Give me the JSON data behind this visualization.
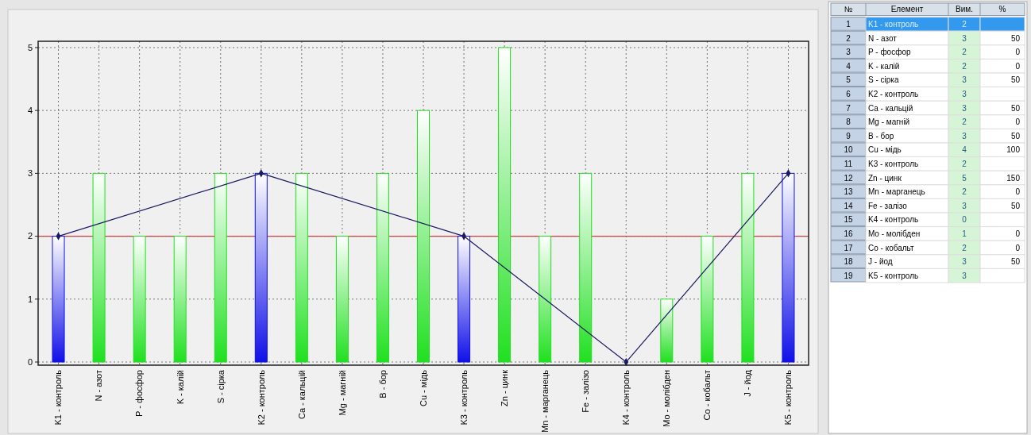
{
  "chart_data": [
    {
      "type": "bar",
      "categories": [
        "K1 - контроль",
        "N - азот",
        "P - фосфор",
        "K - калій",
        "S - сірка",
        "K2 - контроль",
        "Ca - кальцій",
        "Mg - магній",
        "B - бор",
        "Cu - мідь",
        "K3 - контроль",
        "Zn - цинк",
        "Mn - марганець",
        "Fe - залізо",
        "K4 - контроль",
        "Mo - молібден",
        "Co - кобальт",
        "J - йод",
        "K5 - контроль"
      ],
      "series": [
        {
          "values": [
            2,
            3,
            2,
            2,
            3,
            3,
            3,
            2,
            3,
            4,
            2,
            5,
            2,
            3,
            0,
            1,
            2,
            3,
            3
          ],
          "colors": [
            "#1010e8",
            "#20e020",
            "#20e020",
            "#20e020",
            "#20e020",
            "#1010e8",
            "#20e020",
            "#20e020",
            "#20e020",
            "#20e020",
            "#1010e8",
            "#20e020",
            "#20e020",
            "#20e020",
            "#1010e8",
            "#20e020",
            "#20e020",
            "#20e020",
            "#1010e8"
          ]
        },
        {
          "type": "line",
          "color": "#1a1a5e",
          "x": [
            "K1 - контроль",
            "K2 - контроль",
            "K3 - контроль",
            "K4 - контроль",
            "K5 - контроль"
          ],
          "values": [
            2,
            3,
            2,
            0,
            3
          ]
        }
      ],
      "ylim": [
        -0.05,
        5.1
      ],
      "yticks": [
        0,
        1,
        2,
        3,
        4,
        5
      ],
      "grid": true,
      "marker": "diamond",
      "ref_lines": [
        {
          "axis": "y",
          "value": 2,
          "color": "#d04040"
        }
      ]
    },
    {
      "type": "other",
      "annotations": [
        "Елемент"
      ],
      "categories": [
        "K1 - контроль",
        "N - азот",
        "P - фосфор",
        "K - калій",
        "S - сірка",
        "K2 - контроль",
        "Ca - кальцій",
        "Mg - магній",
        "B - бор",
        "Cu - мідь",
        "K3 - контроль",
        "Zn - цинк",
        "Mn - марганець",
        "Fe - залізо",
        "K4 - контроль",
        "Mo - молібден",
        "Co - кобальт",
        "J - йод",
        "K5 - контроль"
      ],
      "series": [
        {
          "name": "№",
          "colors": [
            "#c5d3e6",
            "#c5d3e6",
            "#c5d3e6",
            "#c5d3e6",
            "#c5d3e6",
            "#c5d3e6",
            "#c5d3e6",
            "#c5d3e6",
            "#c5d3e6",
            "#c5d3e6",
            "#c5d3e6",
            "#c5d3e6",
            "#c5d3e6",
            "#c5d3e6",
            "#c5d3e6",
            "#c5d3e6",
            "#c5d3e6",
            "#c5d3e6",
            "#c5d3e6"
          ],
          "values": [
            1,
            2,
            3,
            4,
            5,
            6,
            7,
            8,
            9,
            10,
            11,
            12,
            13,
            14,
            15,
            16,
            17,
            18,
            19
          ]
        },
        {
          "name": "Вим.",
          "colors": [
            "#3399ee",
            "#d6f5d6",
            "#d6f5d6",
            "#d6f5d6",
            "#d6f5d6",
            "#d6f5d6",
            "#d6f5d6",
            "#d6f5d6",
            "#d6f5d6",
            "#d6f5d6",
            "#d6f5d6",
            "#d6f5d6",
            "#d6f5d6",
            "#d6f5d6",
            "#d6f5d6",
            "#d6f5d6",
            "#d6f5d6",
            "#d6f5d6",
            "#d6f5d6"
          ],
          "values": [
            2,
            3,
            2,
            2,
            3,
            3,
            3,
            2,
            3,
            4,
            2,
            5,
            2,
            3,
            0,
            1,
            2,
            3,
            3
          ]
        },
        {
          "name": "%",
          "colors": [
            "#3399ee",
            "#ffffff",
            "#ffffff",
            "#ffffff",
            "#ffffff",
            "#ffffff",
            "#ffffff",
            "#ffffff",
            "#ffffff",
            "#ffffff",
            "#ffffff",
            "#ffffff",
            "#ffffff",
            "#ffffff",
            "#ffffff",
            "#ffffff",
            "#ffffff",
            "#ffffff",
            "#ffffff"
          ],
          "values": [
            null,
            50,
            0,
            0,
            50,
            null,
            50,
            0,
            50,
            100,
            null,
            150,
            0,
            50,
            null,
            0,
            0,
            50,
            null
          ]
        }
      ],
      "data_labels": true
    }
  ]
}
